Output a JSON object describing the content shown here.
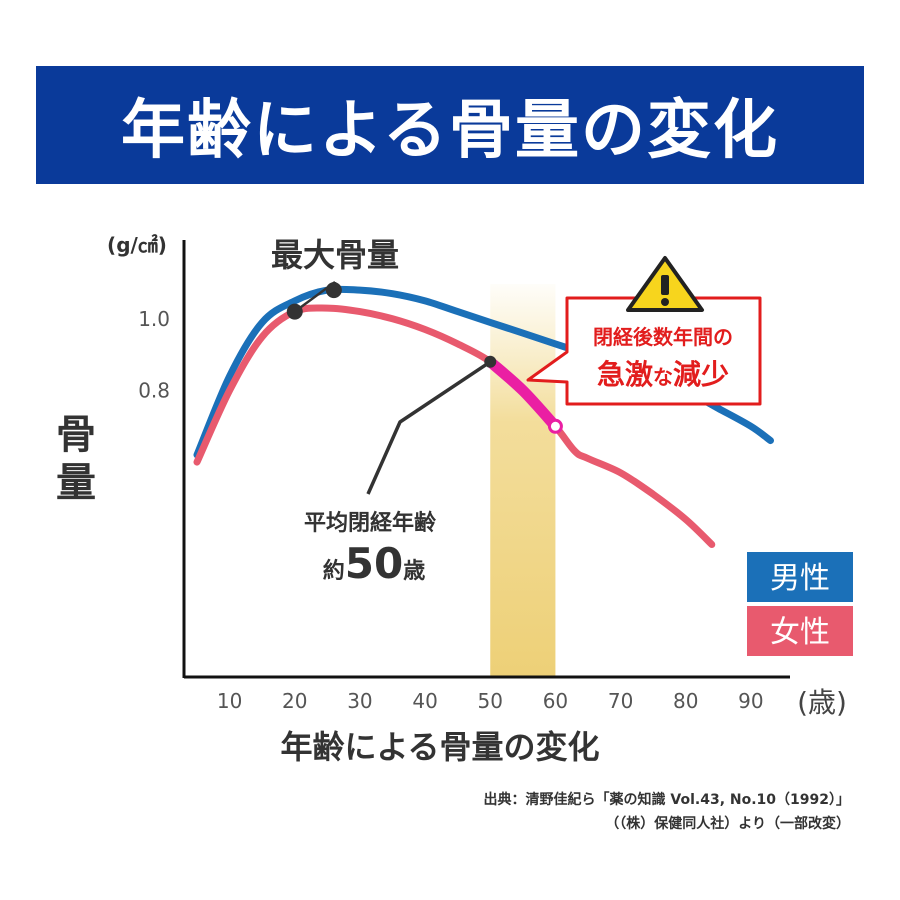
{
  "banner": {
    "title": "年齢による骨量の変化"
  },
  "chart_data": {
    "type": "line",
    "xlabel": "年齢による骨量の変化",
    "ylabel": "骨量",
    "y_unit": "(g/㎠)",
    "x_unit": "(歳)",
    "xlim": [
      3,
      96
    ],
    "ylim": [
      0.0,
      1.22
    ],
    "x_ticks": [
      "10",
      "20",
      "30",
      "40",
      "50",
      "60",
      "70",
      "80",
      "90"
    ],
    "y_ticks": [
      "1.0",
      "0.8"
    ],
    "grid": false,
    "legend_position": "right",
    "series": [
      {
        "name": "男性",
        "color": "#1b70b8",
        "x": [
          5,
          10,
          15,
          20,
          25,
          30,
          35,
          40,
          45,
          50,
          55,
          60,
          65,
          70,
          75,
          80,
          85,
          90,
          93
        ],
        "y": [
          0.62,
          0.84,
          0.99,
          1.05,
          1.08,
          1.08,
          1.07,
          1.05,
          1.02,
          0.99,
          0.96,
          0.93,
          0.9,
          0.87,
          0.84,
          0.8,
          0.75,
          0.7,
          0.66
        ]
      },
      {
        "name": "女性",
        "color": "#e85a6e",
        "x": [
          5,
          10,
          15,
          20,
          25,
          30,
          35,
          40,
          45,
          50,
          55,
          60,
          63,
          65,
          70,
          75,
          80,
          84
        ],
        "y": [
          0.6,
          0.8,
          0.95,
          1.02,
          1.03,
          1.02,
          1.0,
          0.97,
          0.93,
          0.88,
          0.8,
          0.7,
          0.63,
          0.61,
          0.57,
          0.51,
          0.44,
          0.37
        ]
      }
    ],
    "highlight_band": {
      "x": [
        50,
        60
      ]
    },
    "emphasized_segment": {
      "series": "女性",
      "x": [
        50,
        60
      ],
      "color": "#ea1fa3"
    },
    "annotations": {
      "peak_label": "最大骨量",
      "peak_points": [
        {
          "x": 20,
          "y": 1.02
        },
        {
          "x": 26,
          "y": 1.08
        }
      ],
      "menopause_label_line1": "平均閉経年齢",
      "menopause_label_prefix": "約",
      "menopause_label_number": "50",
      "menopause_label_suffix": "歳",
      "menopause_point": {
        "x": 50,
        "y": 0.88
      },
      "warning_line1": "閉経後数年間の",
      "warning_line2_a": "急激",
      "warning_line2_b": "な",
      "warning_line2_c": "減少",
      "warning_color": "#e21d1d",
      "warning_icon": "warning-icon"
    }
  },
  "source": {
    "line1": "出典：清野佳紀ら「薬の知識 Vol.43, No.10（1992）」",
    "line2": "（（株）保健同人社）より（一部改変）"
  }
}
